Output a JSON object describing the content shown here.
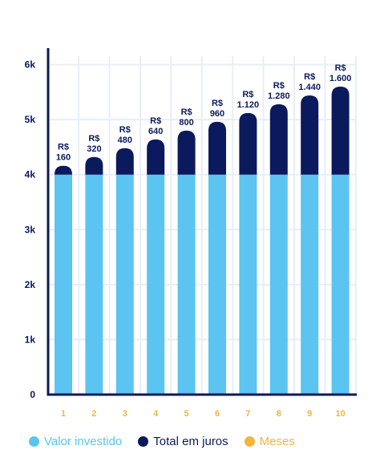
{
  "chart_data": {
    "type": "bar",
    "stacked": true,
    "categories": [
      "1",
      "2",
      "3",
      "4",
      "5",
      "6",
      "7",
      "8",
      "9",
      "10"
    ],
    "series": [
      {
        "name": "Valor investido",
        "values": [
          4000,
          4000,
          4000,
          4000,
          4000,
          4000,
          4000,
          4000,
          4000,
          4000
        ]
      },
      {
        "name": "Total em juros",
        "values": [
          160,
          320,
          480,
          640,
          800,
          960,
          1120,
          1280,
          1440,
          1600
        ]
      }
    ],
    "data_labels": [
      {
        "currency": "R$",
        "value": "160"
      },
      {
        "currency": "R$",
        "value": "320"
      },
      {
        "currency": "R$",
        "value": "480"
      },
      {
        "currency": "R$",
        "value": "640"
      },
      {
        "currency": "R$",
        "value": "800"
      },
      {
        "currency": "R$",
        "value": "960"
      },
      {
        "currency": "R$",
        "value": "1.120"
      },
      {
        "currency": "R$",
        "value": "1.280"
      },
      {
        "currency": "R$",
        "value": "1.440"
      },
      {
        "currency": "R$",
        "value": "1.600"
      }
    ],
    "y_ticks": [
      {
        "value": 0,
        "label": "0"
      },
      {
        "value": 1000,
        "label": "1k"
      },
      {
        "value": 2000,
        "label": "2k"
      },
      {
        "value": 3000,
        "label": "3k"
      },
      {
        "value": 4000,
        "label": "4k"
      },
      {
        "value": 5000,
        "label": "5k"
      },
      {
        "value": 6000,
        "label": "6k"
      }
    ],
    "ylim": [
      0,
      6300
    ],
    "grid": true,
    "legend_position": "bottom"
  },
  "legend": {
    "items": [
      {
        "label": "Valor investido",
        "color": "#5bc4f1"
      },
      {
        "label": "Total em juros",
        "color": "#0b1a5c"
      },
      {
        "label": "Meses",
        "color": "#f2b441"
      }
    ]
  },
  "colors": {
    "invested": "#5bc4f1",
    "interest": "#0b1a5c",
    "axis": "#0b1a5c",
    "x_tick_labels": "#f2b441",
    "grid": "#e8eef7"
  }
}
